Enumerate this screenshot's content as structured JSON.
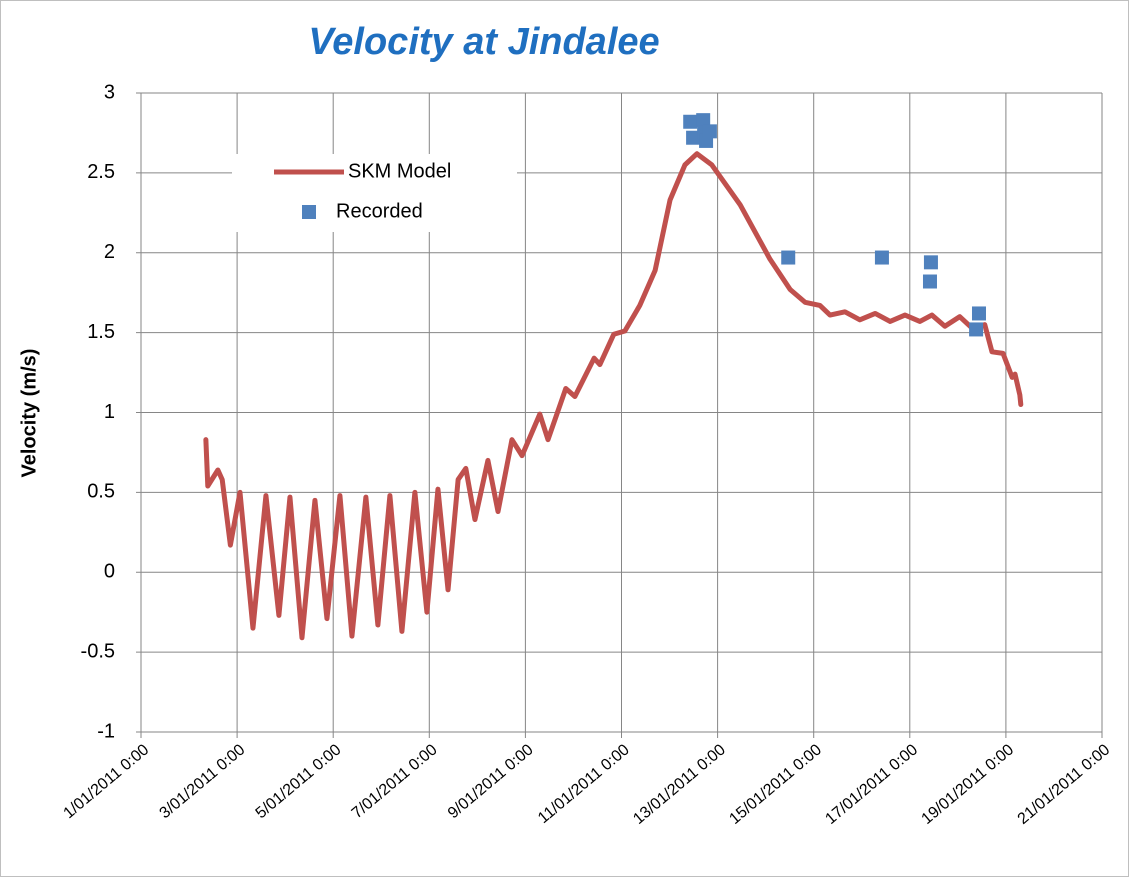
{
  "chart_data": {
    "type": "line",
    "title": "Velocity at Jindalee",
    "y_label": "Velocity (m/s)",
    "xlim": [
      1,
      21
    ],
    "ylim": [
      -1,
      3
    ],
    "xticks": [
      {
        "value": 1,
        "label": "1/01/2011 0:00"
      },
      {
        "value": 3,
        "label": "3/01/2011 0:00"
      },
      {
        "value": 5,
        "label": "5/01/2011 0:00"
      },
      {
        "value": 7,
        "label": "7/01/2011 0:00"
      },
      {
        "value": 9,
        "label": "9/01/2011 0:00"
      },
      {
        "value": 11,
        "label": "11/01/2011 0:00"
      },
      {
        "value": 13,
        "label": "13/01/2011 0:00"
      },
      {
        "value": 15,
        "label": "15/01/2011 0:00"
      },
      {
        "value": 17,
        "label": "17/01/2011 0:00"
      },
      {
        "value": 19,
        "label": "19/01/2011 0:00"
      },
      {
        "value": 21,
        "label": "21/01/2011 0:00"
      }
    ],
    "yticks": [
      -1,
      -0.5,
      0,
      0.5,
      1,
      1.5,
      2,
      2.5,
      3
    ],
    "grid": true,
    "legend": "upper left",
    "series": [
      {
        "name": "SKM Model",
        "kind": "line",
        "color": "#c0504d",
        "x": [
          2.35,
          2.39,
          2.6,
          2.69,
          2.86,
          3.06,
          3.33,
          3.6,
          3.87,
          4.1,
          4.35,
          4.62,
          4.87,
          5.14,
          5.39,
          5.68,
          5.93,
          6.18,
          6.43,
          6.7,
          6.95,
          7.18,
          7.39,
          7.6,
          7.76,
          7.95,
          8.22,
          8.43,
          8.72,
          8.93,
          9.3,
          9.47,
          9.84,
          10.03,
          10.43,
          10.55,
          10.84,
          11.07,
          11.38,
          11.7,
          12.01,
          12.32,
          12.57,
          12.88,
          13.47,
          14.09,
          14.51,
          14.82,
          15.13,
          15.34,
          15.65,
          15.96,
          16.28,
          16.59,
          16.9,
          17.21,
          17.46,
          17.73,
          18.04,
          18.29,
          18.56,
          18.71,
          18.94,
          19.13,
          19.19,
          19.29,
          19.31
        ],
        "values": [
          0.83,
          0.54,
          0.64,
          0.58,
          0.17,
          0.5,
          -0.35,
          0.48,
          -0.27,
          0.47,
          -0.41,
          0.45,
          -0.29,
          0.48,
          -0.4,
          0.47,
          -0.33,
          0.48,
          -0.37,
          0.5,
          -0.25,
          0.52,
          -0.11,
          0.58,
          0.65,
          0.33,
          0.7,
          0.38,
          0.83,
          0.73,
          0.99,
          0.83,
          1.15,
          1.1,
          1.34,
          1.3,
          1.49,
          1.51,
          1.67,
          1.89,
          2.33,
          2.55,
          2.62,
          2.55,
          2.3,
          1.96,
          1.77,
          1.69,
          1.67,
          1.61,
          1.63,
          1.58,
          1.62,
          1.57,
          1.61,
          1.57,
          1.61,
          1.54,
          1.6,
          1.53,
          1.55,
          1.38,
          1.37,
          1.22,
          1.24,
          1.11,
          1.05
        ]
      },
      {
        "name": "Recorded",
        "kind": "scatter",
        "color": "#4f81bd",
        "x": [
          12.43,
          12.49,
          12.7,
          12.72,
          12.76,
          12.84,
          14.47,
          16.42,
          17.44,
          17.42,
          18.38,
          18.44
        ],
        "values": [
          2.82,
          2.72,
          2.83,
          2.75,
          2.7,
          2.76,
          1.97,
          1.97,
          1.94,
          1.82,
          1.52,
          1.62
        ]
      }
    ]
  }
}
